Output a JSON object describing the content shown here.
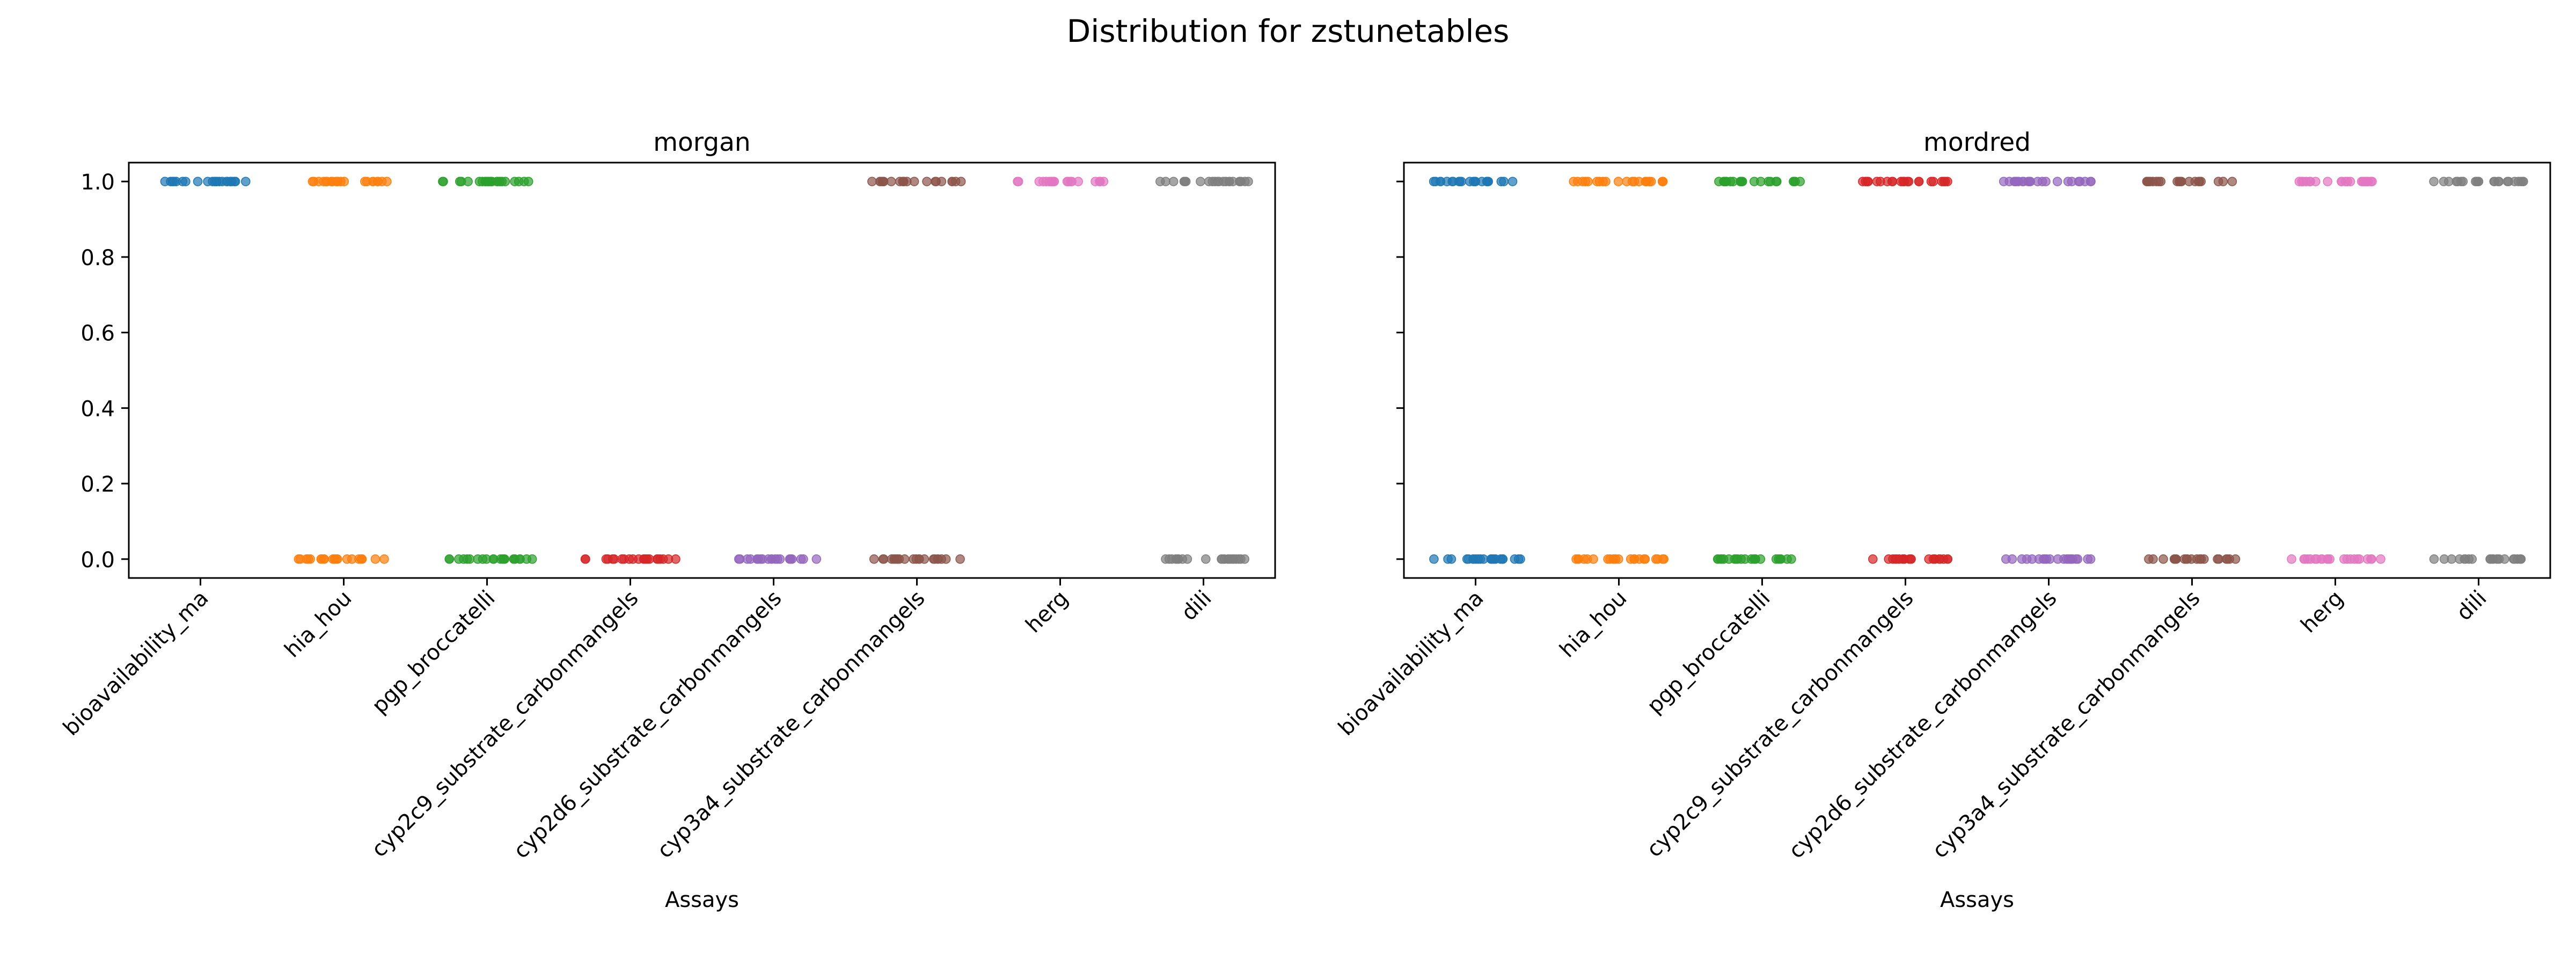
{
  "figure": {
    "title": "Distribution for zstunetables"
  },
  "chart_data": [
    {
      "type": "scatter",
      "title": "morgan",
      "xlabel": "Assays",
      "ylabel": "",
      "ylim": [
        -0.05,
        1.05
      ],
      "yticks": [
        "0.0",
        "0.2",
        "0.4",
        "0.6",
        "0.8",
        "1.0"
      ],
      "grid": false,
      "legend": "none",
      "categories": [
        "bioavailability_ma",
        "hia_hou",
        "pgp_broccatelli",
        "cyp2c9_substrate_carbonmangels",
        "cyp2d6_substrate_carbonmangels",
        "cyp3a4_substrate_carbonmangels",
        "herg",
        "dili"
      ],
      "colors": [
        "#1f77b4",
        "#ff7f0e",
        "#2ca02c",
        "#d62728",
        "#9467bd",
        "#8c564b",
        "#e377c2",
        "#7f7f7f"
      ],
      "series": [
        {
          "values_present": [
            1
          ]
        },
        {
          "values_present": [
            1,
            0
          ]
        },
        {
          "values_present": [
            1,
            0
          ]
        },
        {
          "values_present": [
            0
          ]
        },
        {
          "values_present": [
            0
          ]
        },
        {
          "values_present": [
            1,
            0
          ]
        },
        {
          "values_present": [
            1
          ]
        },
        {
          "values_present": [
            1,
            0
          ]
        }
      ]
    },
    {
      "type": "scatter",
      "title": "mordred",
      "xlabel": "Assays",
      "ylabel": "",
      "ylim": [
        -0.05,
        1.05
      ],
      "yticks": [
        "0.0",
        "0.2",
        "0.4",
        "0.6",
        "0.8",
        "1.0"
      ],
      "grid": false,
      "legend": "none",
      "categories": [
        "bioavailability_ma",
        "hia_hou",
        "pgp_broccatelli",
        "cyp2c9_substrate_carbonmangels",
        "cyp2d6_substrate_carbonmangels",
        "cyp3a4_substrate_carbonmangels",
        "herg",
        "dili"
      ],
      "colors": [
        "#1f77b4",
        "#ff7f0e",
        "#2ca02c",
        "#d62728",
        "#9467bd",
        "#8c564b",
        "#e377c2",
        "#7f7f7f"
      ],
      "series": [
        {
          "values_present": [
            1,
            0
          ]
        },
        {
          "values_present": [
            1,
            0
          ]
        },
        {
          "values_present": [
            1,
            0
          ]
        },
        {
          "values_present": [
            1,
            0
          ]
        },
        {
          "values_present": [
            1,
            0
          ]
        },
        {
          "values_present": [
            1,
            0
          ]
        },
        {
          "values_present": [
            1,
            0
          ]
        },
        {
          "values_present": [
            1,
            0
          ]
        }
      ]
    }
  ]
}
